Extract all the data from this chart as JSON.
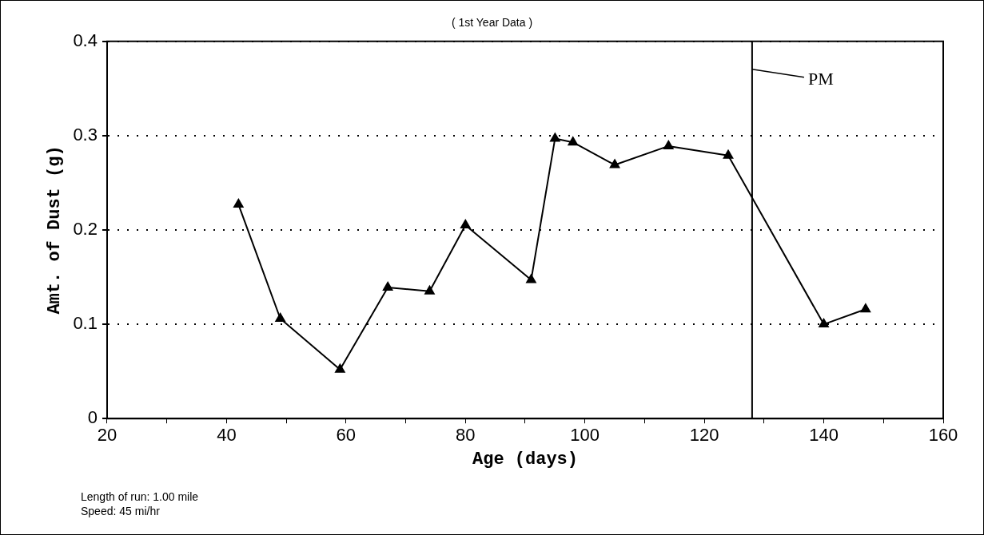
{
  "chart_data": {
    "type": "line",
    "title": "( 1st Year Data )",
    "xlabel": "Age (days)",
    "ylabel": "Amt. of Dust (g)",
    "x": [
      42,
      49,
      59,
      67,
      74,
      80,
      91,
      95,
      98,
      105,
      114,
      124,
      140,
      147
    ],
    "series": [
      {
        "color": "#000000",
        "values": [
          0.227,
          0.106,
          0.052,
          0.139,
          0.135,
          0.205,
          0.147,
          0.297,
          0.293,
          0.269,
          0.289,
          0.279,
          0.1,
          0.116
        ]
      }
    ],
    "xlim": [
      20,
      160
    ],
    "xticks": [
      20,
      {
        "value": 30,
        "label": null
      },
      40,
      {
        "value": 50,
        "label": null
      },
      60,
      {
        "value": 70,
        "label": null
      },
      80,
      {
        "value": 90,
        "label": null
      },
      100,
      {
        "value": 110,
        "label": null
      },
      120,
      {
        "value": 130,
        "label": null
      },
      140,
      {
        "value": 150,
        "label": null
      },
      160
    ],
    "ylim": [
      0,
      0.4
    ],
    "yticks": [
      0,
      0.1,
      0.2,
      0.3,
      0.4
    ],
    "grid": "y",
    "legend": false,
    "marker": "triangle",
    "line_style": "solid",
    "ref_lines": [
      {
        "axis": "x",
        "value": 128,
        "label": "PM"
      }
    ],
    "annotations": [
      "Length of run: 1.00 mile",
      "Speed: 45 mi/hr"
    ]
  }
}
